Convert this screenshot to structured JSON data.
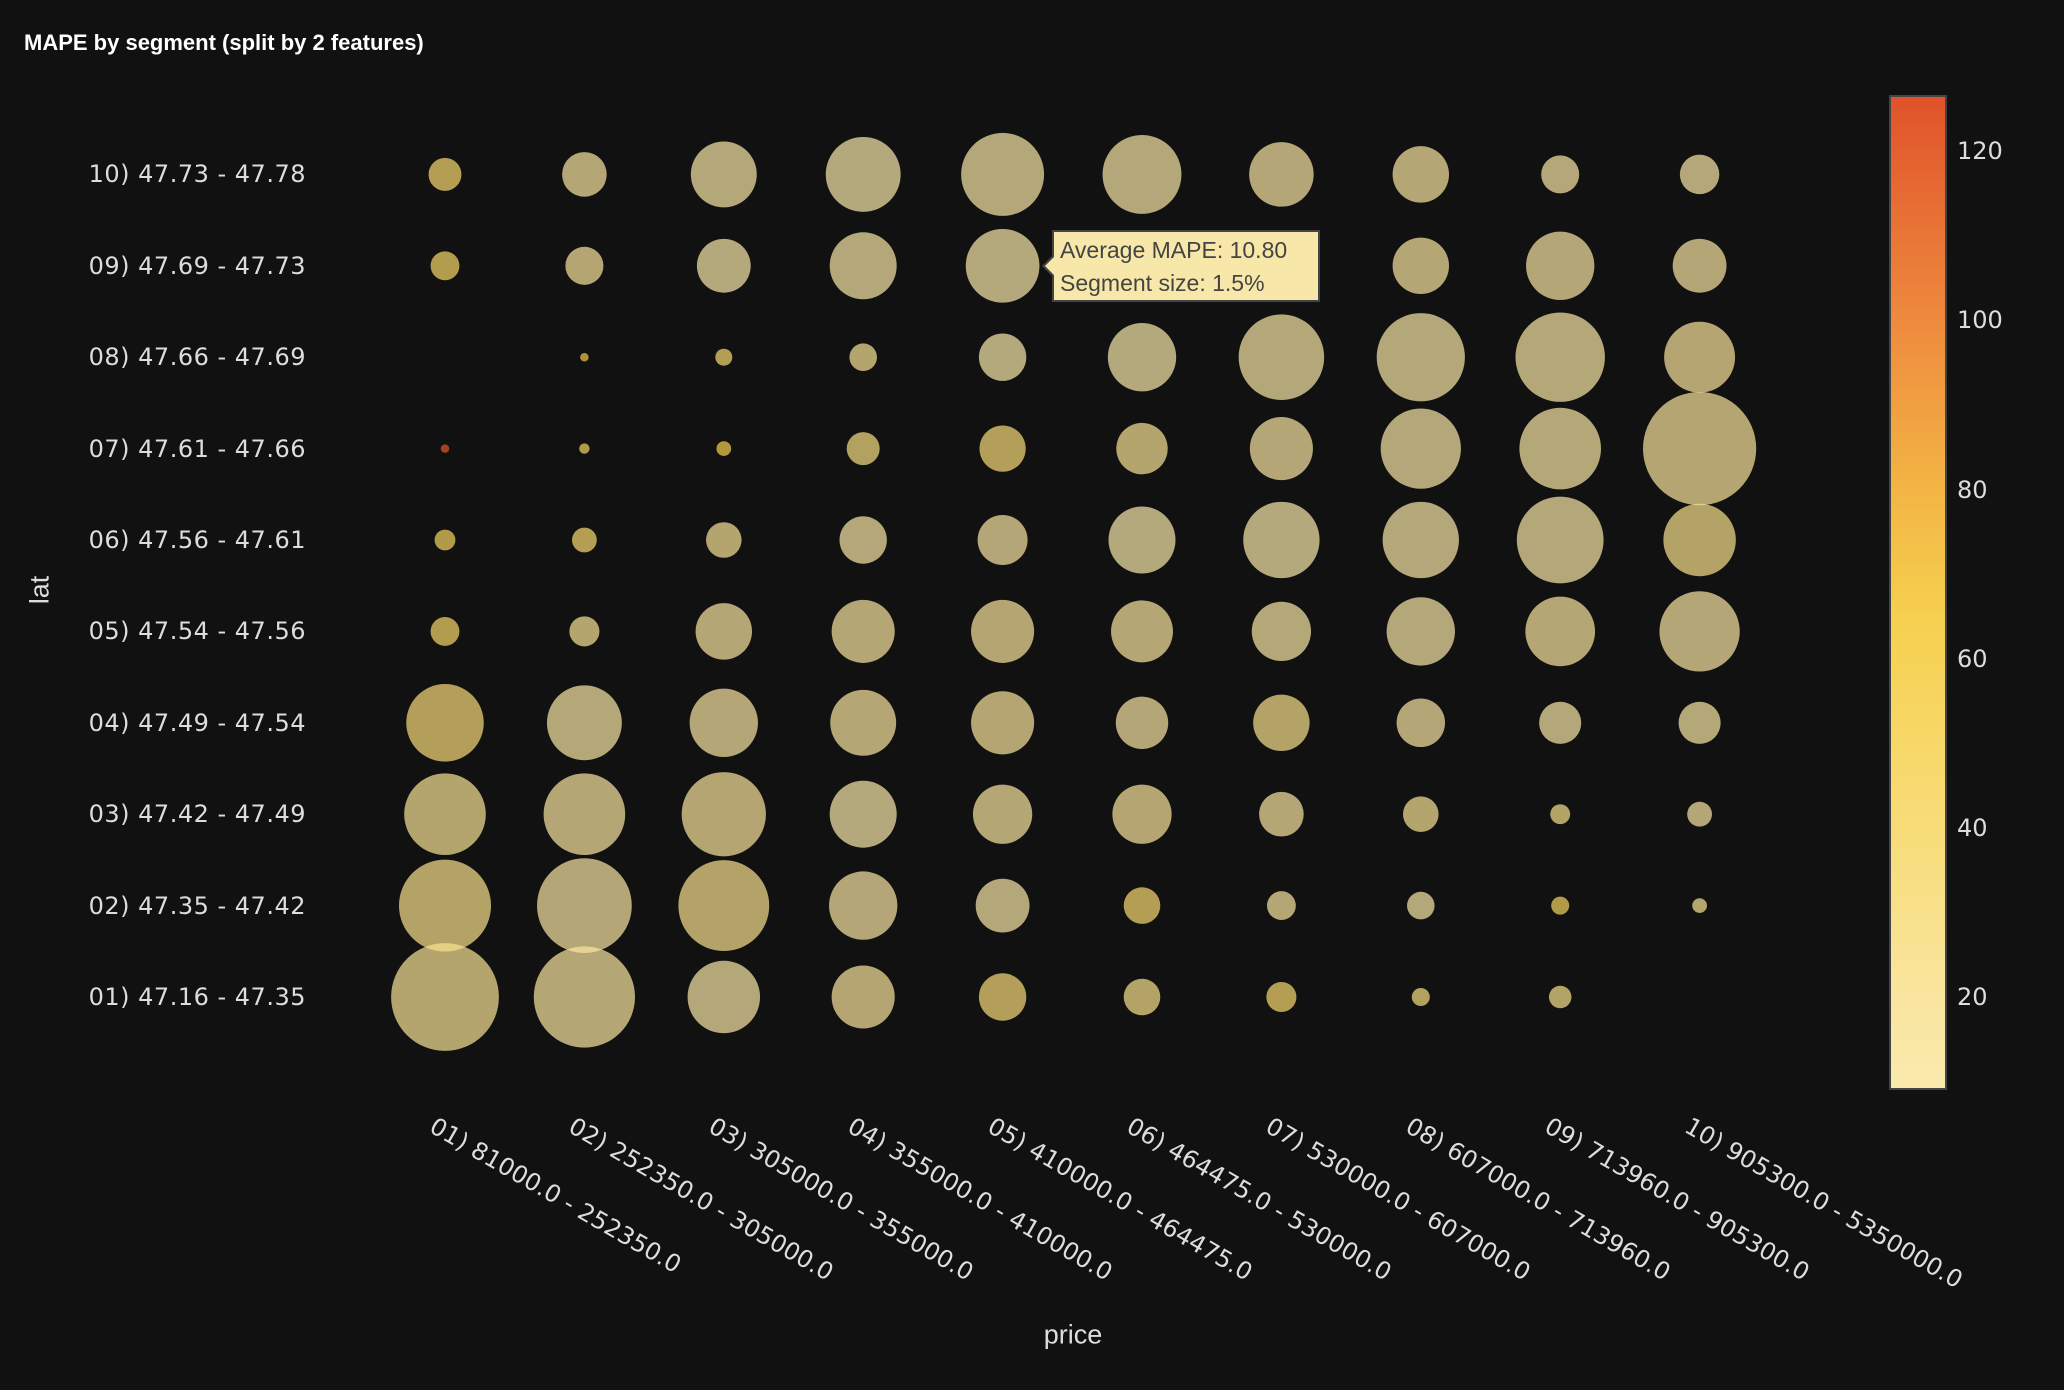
{
  "chart_data": {
    "type": "scatter",
    "title": "MAPE by segment (split by 2 features)",
    "xlabel": "price",
    "ylabel": "lat",
    "x_categories": [
      "01) 81000.0 - 252350.0",
      "02) 252350.0 - 305000.0",
      "03) 305000.0 - 355000.0",
      "04) 355000.0 - 410000.0",
      "05) 410000.0 - 464475.0",
      "06) 464475.0 - 530000.0",
      "07) 530000.0 - 607000.0",
      "08) 607000.0 - 713960.0",
      "09) 713960.0 - 905300.0",
      "10) 905300.0 - 5350000.0"
    ],
    "y_categories": [
      "01) 47.16 - 47.35",
      "02) 47.35 - 47.42",
      "03) 47.42 - 47.49",
      "04) 47.49 - 47.54",
      "05) 47.54 - 47.56",
      "06) 47.56 - 47.61",
      "07) 47.61 - 47.66",
      "08) 47.66 - 47.69",
      "09) 47.69 - 47.73",
      "10) 47.73 - 47.78"
    ],
    "mape": [
      [
        25,
        20,
        15,
        22,
        40,
        30,
        45,
        35,
        30,
        null
      ],
      [
        30,
        18,
        28,
        17,
        15,
        45,
        20,
        15,
        55,
        25
      ],
      [
        25,
        20,
        22,
        11,
        20,
        22,
        20,
        25,
        30,
        18
      ],
      [
        40,
        16,
        18,
        20,
        22,
        17,
        30,
        17,
        14,
        16
      ],
      [
        50,
        25,
        20,
        20,
        22,
        20,
        16,
        15,
        20,
        17
      ],
      [
        55,
        45,
        25,
        15,
        18,
        12,
        12,
        13,
        14,
        30
      ],
      [
        125,
        55,
        65,
        35,
        40,
        25,
        18,
        15,
        16,
        22
      ],
      [
        null,
        70,
        45,
        25,
        12,
        12,
        13,
        14,
        16,
        22
      ],
      [
        50,
        22,
        12,
        15,
        10.8,
        15,
        15,
        20,
        17,
        18
      ],
      [
        45,
        20,
        15,
        12,
        14,
        15,
        18,
        20,
        15,
        14
      ]
    ],
    "segment_size_pct": [
      [
        3.21,
        2.83,
        1.45,
        1.1,
        0.62,
        0.37,
        0.25,
        0.09,
        0.14,
        null
      ],
      [
        2.34,
        2.48,
        2.28,
        1.29,
        0.8,
        0.37,
        0.23,
        0.21,
        0.09,
        0.06
      ],
      [
        1.84,
        1.84,
        1.96,
        1.24,
        0.97,
        0.97,
        0.55,
        0.35,
        0.11,
        0.17
      ],
      [
        1.66,
        1.55,
        1.29,
        1.2,
        1.1,
        0.76,
        0.88,
        0.65,
        0.49,
        0.49
      ],
      [
        0.23,
        0.25,
        0.88,
        1.1,
        1.1,
        1.06,
        0.97,
        1.29,
        1.34,
        1.78
      ],
      [
        0.12,
        0.17,
        0.35,
        0.62,
        0.69,
        1.24,
        1.61,
        1.61,
        2.08,
        1.45
      ],
      [
        0.02,
        0.03,
        0.06,
        0.3,
        0.59,
        0.73,
        1.1,
        1.78,
        1.84,
        3.54
      ],
      [
        null,
        0.02,
        0.08,
        0.21,
        0.62,
        1.29,
        2.02,
        2.15,
        2.21,
        1.39
      ],
      [
        0.23,
        0.4,
        0.8,
        1.24,
        1.5,
        1.2,
        0.97,
        0.88,
        1.29,
        0.8
      ],
      [
        0.3,
        0.55,
        1.2,
        1.55,
        1.9,
        1.72,
        1.15,
        0.88,
        0.4,
        0.43
      ]
    ],
    "marker_opacity": 0.7,
    "colorbar": {
      "range": [
        9.3,
        126.4
      ],
      "ticks": [
        20,
        40,
        60,
        80,
        100,
        120
      ],
      "colorscale": [
        [
          9.3,
          "#f9eaad"
        ],
        [
          20,
          "#f9e59f"
        ],
        [
          40,
          "#f8dc78"
        ],
        [
          65,
          "#f6d04f"
        ],
        [
          80,
          "#f2b544"
        ],
        [
          100,
          "#ee8a3e"
        ],
        [
          126.4,
          "#e0522a"
        ]
      ]
    },
    "grid": false,
    "legend": "none"
  },
  "tooltip": {
    "line1": "Average MAPE: 10.80",
    "line2": "Segment size: 1.5%"
  },
  "background": "#111111"
}
